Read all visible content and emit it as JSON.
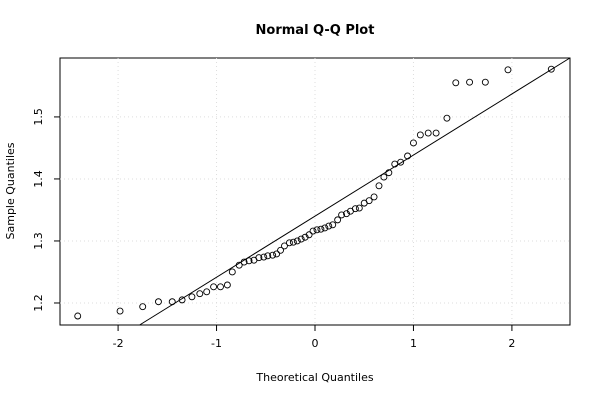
{
  "chart_data": {
    "type": "scatter",
    "title": "Normal Q-Q Plot",
    "x_label": "Theoretical Quantiles",
    "y_label": "Sample Quantiles",
    "xlim": [
      -2.59,
      2.59
    ],
    "ylim": [
      1.1645,
      1.595
    ],
    "xticks": [
      -2,
      -1,
      0,
      1,
      2
    ],
    "yticks": [
      1.2,
      1.3,
      1.4,
      1.5
    ],
    "grid": true,
    "color": "#000000",
    "reference_line": {
      "intercept": 1.34,
      "slope": 0.0985
    },
    "x": [
      -2.41,
      -1.98,
      -1.75,
      -1.59,
      -1.45,
      -1.35,
      -1.25,
      -1.17,
      -1.1,
      -1.03,
      -0.96,
      -0.89,
      -0.84,
      -0.77,
      -0.72,
      -0.67,
      -0.62,
      -0.57,
      -0.52,
      -0.48,
      -0.43,
      -0.39,
      -0.35,
      -0.31,
      -0.26,
      -0.22,
      -0.18,
      -0.14,
      -0.1,
      -0.06,
      -0.02,
      0.02,
      0.06,
      0.1,
      0.14,
      0.18,
      0.23,
      0.27,
      0.32,
      0.36,
      0.41,
      0.45,
      0.5,
      0.55,
      0.6,
      0.65,
      0.7,
      0.75,
      0.81,
      0.87,
      0.94,
      1.0,
      1.07,
      1.15,
      1.23,
      1.34,
      1.43,
      1.57,
      1.73,
      1.96,
      2.4
    ],
    "values": [
      1.179,
      1.187,
      1.194,
      1.202,
      1.202,
      1.205,
      1.21,
      1.215,
      1.218,
      1.226,
      1.226,
      1.229,
      1.25,
      1.261,
      1.266,
      1.268,
      1.269,
      1.273,
      1.274,
      1.276,
      1.277,
      1.279,
      1.285,
      1.292,
      1.297,
      1.298,
      1.3,
      1.303,
      1.306,
      1.31,
      1.316,
      1.318,
      1.319,
      1.321,
      1.324,
      1.326,
      1.334,
      1.342,
      1.344,
      1.348,
      1.352,
      1.353,
      1.361,
      1.365,
      1.371,
      1.389,
      1.403,
      1.41,
      1.424,
      1.427,
      1.437,
      1.458,
      1.471,
      1.474,
      1.474,
      1.498,
      1.555,
      1.556,
      1.556,
      1.576,
      1.577
    ]
  }
}
